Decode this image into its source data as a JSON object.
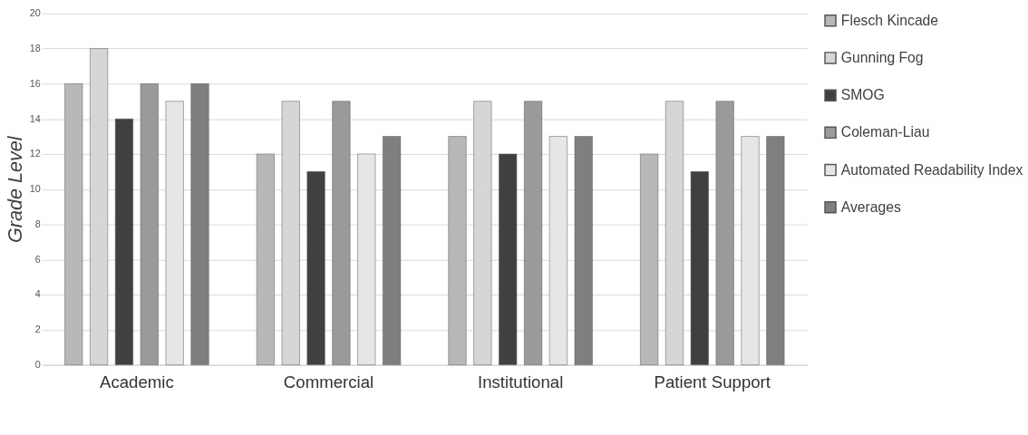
{
  "chart_data": {
    "type": "bar",
    "ylabel": "Grade Level",
    "categories": [
      "Academic",
      "Commercial",
      "Institutional",
      "Patient Support"
    ],
    "series": [
      {
        "name": "Flesch Kincade",
        "color": "#b8b8b8",
        "values": [
          16,
          12,
          13,
          12
        ]
      },
      {
        "name": "Gunning Fog",
        "color": "#d6d6d6",
        "values": [
          18,
          15,
          15,
          15
        ]
      },
      {
        "name": "SMOG",
        "color": "#404040",
        "values": [
          14,
          11,
          12,
          11
        ]
      },
      {
        "name": "Coleman-Liau",
        "color": "#9a9a9a",
        "values": [
          16,
          15,
          15,
          15
        ]
      },
      {
        "name": "Automated Readability Index",
        "color": "#e6e6e6",
        "values": [
          15,
          12,
          13,
          13
        ]
      },
      {
        "name": "Averages",
        "color": "#7f7f7f",
        "values": [
          16,
          13,
          13,
          13
        ]
      }
    ],
    "ylim": [
      0,
      20
    ],
    "yticks": [
      0,
      2,
      4,
      6,
      8,
      10,
      12,
      14,
      16,
      18,
      20
    ],
    "grid": "y",
    "legend": "right"
  }
}
